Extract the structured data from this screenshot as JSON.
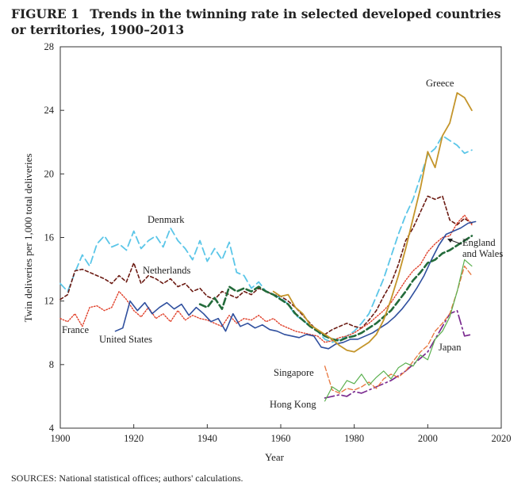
{
  "figure": {
    "label": "FIGURE 1",
    "title": "Trends in the twinning rate in selected developed countries or territories, 1900–2013",
    "sources": "SOURCES: National statistical offices; authors' calculations."
  },
  "chart_data": {
    "type": "line",
    "title": "Trends in the twinning rate in selected developed countries or territories, 1900–2013",
    "xlabel": "Year",
    "ylabel": "Twin deliveries per 1,000 total deliveries",
    "xlim": [
      1900,
      2020
    ],
    "ylim": [
      4,
      28
    ],
    "xticks": [
      1900,
      1920,
      1940,
      1960,
      1980,
      2000,
      2020
    ],
    "yticks": [
      4,
      8,
      12,
      16,
      20,
      24,
      28
    ],
    "grid": false,
    "legend": "inline labels",
    "series": [
      {
        "name": "Denmark",
        "label": "Denmark",
        "color": "#5bc6e8",
        "dash": "9,5",
        "width": 1.8,
        "x": [
          1900,
          1902,
          1904,
          1906,
          1908,
          1910,
          1912,
          1914,
          1916,
          1918,
          1920,
          1922,
          1924,
          1926,
          1928,
          1930,
          1932,
          1934,
          1936,
          1938,
          1940,
          1942,
          1944,
          1946,
          1948,
          1950,
          1952,
          1954,
          1956,
          1958,
          1960,
          1962,
          1964,
          1966,
          1968,
          1970,
          1972,
          1974,
          1976,
          1978,
          1980,
          1982,
          1984,
          1986,
          1988,
          1990,
          1992,
          1994,
          1996,
          1998,
          2000,
          2002,
          2004,
          2006,
          2008,
          2010,
          2012
        ],
        "values": [
          13.1,
          12.6,
          13.8,
          14.9,
          14.2,
          15.6,
          16.1,
          15.4,
          15.6,
          15.2,
          16.4,
          15.3,
          15.8,
          16.1,
          15.4,
          16.6,
          15.8,
          15.3,
          14.6,
          15.8,
          14.5,
          15.3,
          14.6,
          15.7,
          13.8,
          13.6,
          12.8,
          13.2,
          12.6,
          12.4,
          12.2,
          11.8,
          11.1,
          10.8,
          10.4,
          10.1,
          9.6,
          9.4,
          9.6,
          9.8,
          10.1,
          10.6,
          11.2,
          12.3,
          13.4,
          14.8,
          16.2,
          17.4,
          18.4,
          19.8,
          21.2,
          21.6,
          22.4,
          22.1,
          21.8,
          21.3,
          21.5
        ]
      },
      {
        "name": "Netherlands",
        "label": "Netherlands",
        "color": "#6b1a12",
        "dash": "4,3",
        "width": 1.6,
        "x": [
          1900,
          1902,
          1904,
          1906,
          1908,
          1910,
          1912,
          1914,
          1916,
          1918,
          1920,
          1922,
          1924,
          1926,
          1928,
          1930,
          1932,
          1934,
          1936,
          1938,
          1940,
          1942,
          1944,
          1946,
          1948,
          1950,
          1952,
          1954,
          1956,
          1958,
          1960,
          1962,
          1964,
          1966,
          1968,
          1970,
          1972,
          1974,
          1976,
          1978,
          1980,
          1982,
          1984,
          1986,
          1988,
          1990,
          1992,
          1994,
          1996,
          1998,
          2000,
          2002,
          2004,
          2006,
          2008,
          2010,
          2012
        ],
        "values": [
          12.1,
          12.4,
          13.9,
          14.0,
          13.8,
          13.6,
          13.4,
          13.1,
          13.6,
          13.2,
          14.4,
          13.1,
          13.6,
          13.4,
          13.1,
          13.4,
          12.9,
          13.1,
          12.6,
          12.8,
          12.3,
          12.1,
          12.6,
          12.4,
          12.2,
          12.6,
          12.4,
          12.8,
          12.6,
          12.4,
          12.3,
          12.0,
          11.6,
          11.1,
          10.6,
          10.1,
          9.9,
          10.2,
          10.4,
          10.6,
          10.4,
          10.3,
          10.8,
          11.4,
          12.3,
          13.1,
          14.3,
          15.8,
          16.6,
          17.6,
          18.6,
          18.4,
          18.6,
          17.1,
          16.8,
          17.2,
          16.9
        ]
      },
      {
        "name": "France",
        "label": "France",
        "color": "#e0402a",
        "dash": "1.5,2",
        "width": 1.4,
        "x": [
          1900,
          1902,
          1904,
          1906,
          1908,
          1910,
          1912,
          1914,
          1916,
          1918,
          1920,
          1922,
          1924,
          1926,
          1928,
          1930,
          1932,
          1934,
          1936,
          1938,
          1940,
          1942,
          1944,
          1946,
          1948,
          1950,
          1952,
          1954,
          1956,
          1958,
          1960,
          1962,
          1964,
          1966,
          1968,
          1970,
          1972,
          1974,
          1976,
          1978,
          1980,
          1982,
          1984,
          1986,
          1988,
          1990,
          1992,
          1994,
          1996,
          1998,
          2000,
          2002,
          2004,
          2006,
          2008,
          2010,
          2012
        ],
        "values": [
          10.9,
          10.7,
          11.2,
          10.4,
          11.6,
          11.7,
          11.4,
          11.6,
          12.6,
          12.1,
          11.4,
          11.0,
          11.6,
          10.9,
          11.2,
          10.7,
          11.4,
          10.8,
          11.1,
          10.9,
          10.8,
          10.6,
          10.4,
          11.1,
          10.6,
          10.9,
          10.8,
          11.1,
          10.7,
          10.9,
          10.5,
          10.3,
          10.1,
          10.0,
          9.9,
          9.8,
          9.4,
          9.5,
          9.7,
          9.8,
          10.0,
          10.3,
          10.6,
          11.0,
          11.4,
          11.9,
          12.6,
          13.3,
          13.9,
          14.3,
          15.1,
          15.6,
          16.0,
          16.1,
          16.9,
          17.4,
          16.8
        ]
      },
      {
        "name": "United States",
        "label": "United States",
        "color": "#2f4f9e",
        "dash": "",
        "width": 1.6,
        "x": [
          1915,
          1917,
          1919,
          1921,
          1923,
          1925,
          1927,
          1929,
          1931,
          1933,
          1935,
          1937,
          1939,
          1941,
          1943,
          1945,
          1947,
          1949,
          1951,
          1953,
          1955,
          1957,
          1959,
          1961,
          1963,
          1965,
          1967,
          1969,
          1971,
          1973,
          1975,
          1977,
          1979,
          1981,
          1983,
          1985,
          1987,
          1989,
          1991,
          1993,
          1995,
          1997,
          1999,
          2001,
          2003,
          2005,
          2007,
          2009,
          2011,
          2013
        ],
        "values": [
          10.1,
          10.3,
          12.0,
          11.4,
          11.9,
          11.2,
          11.6,
          11.9,
          11.5,
          11.8,
          11.1,
          11.6,
          11.2,
          10.7,
          10.9,
          10.1,
          11.2,
          10.4,
          10.6,
          10.3,
          10.5,
          10.2,
          10.1,
          9.9,
          9.8,
          9.7,
          9.9,
          9.8,
          9.1,
          9.0,
          9.3,
          9.4,
          9.6,
          9.6,
          9.8,
          10.0,
          10.3,
          10.6,
          11.0,
          11.5,
          12.1,
          12.8,
          13.6,
          14.6,
          15.5,
          16.2,
          16.4,
          16.6,
          16.9,
          17.0
        ]
      },
      {
        "name": "England and Wales",
        "label": "England and Wales",
        "color": "#236b3a",
        "dash": "8,4",
        "width": 2.6,
        "x": [
          1938,
          1940,
          1942,
          1944,
          1946,
          1948,
          1950,
          1952,
          1954,
          1956,
          1958,
          1960,
          1962,
          1964,
          1966,
          1968,
          1970,
          1972,
          1974,
          1976,
          1978,
          1980,
          1982,
          1984,
          1986,
          1988,
          1990,
          1992,
          1994,
          1996,
          1998,
          2000,
          2002,
          2004,
          2006,
          2008,
          2010,
          2012
        ],
        "values": [
          11.8,
          11.6,
          12.2,
          11.5,
          12.9,
          12.6,
          12.8,
          12.6,
          12.9,
          12.6,
          12.4,
          12.1,
          11.8,
          11.2,
          10.8,
          10.4,
          10.1,
          9.8,
          9.6,
          9.5,
          9.7,
          9.8,
          10.0,
          10.3,
          10.6,
          11.0,
          11.4,
          12.0,
          12.6,
          13.3,
          13.8,
          14.4,
          14.6,
          15.0,
          15.2,
          15.5,
          15.8,
          16.1
        ]
      },
      {
        "name": "Greece",
        "label": "Greece",
        "color": "#c4952b",
        "dash": "",
        "width": 1.8,
        "x": [
          1958,
          1960,
          1962,
          1964,
          1966,
          1968,
          1970,
          1972,
          1974,
          1976,
          1978,
          1980,
          1982,
          1984,
          1986,
          1988,
          1990,
          1992,
          1994,
          1996,
          1998,
          2000,
          2002,
          2004,
          2006,
          2008,
          2010,
          2012
        ],
        "values": [
          12.6,
          12.3,
          12.4,
          11.6,
          11.2,
          10.5,
          10.2,
          9.9,
          9.6,
          9.2,
          8.9,
          8.8,
          9.1,
          9.4,
          9.9,
          10.8,
          12.1,
          13.6,
          15.3,
          17.2,
          19.1,
          21.4,
          20.4,
          22.4,
          23.2,
          25.1,
          24.8,
          24.0
        ]
      },
      {
        "name": "Japan",
        "label": "Japan",
        "color": "#7a2a8f",
        "dash": "12,4,2,4",
        "width": 1.7,
        "x": [
          1972,
          1974,
          1976,
          1978,
          1980,
          1982,
          1984,
          1986,
          1988,
          1990,
          1992,
          1994,
          1996,
          1998,
          2000,
          2002,
          2004,
          2006,
          2008,
          2010,
          2012
        ],
        "values": [
          5.9,
          6.0,
          6.1,
          6.0,
          6.3,
          6.2,
          6.4,
          6.6,
          6.8,
          7.0,
          7.3,
          7.6,
          8.0,
          8.4,
          8.8,
          9.6,
          10.4,
          11.2,
          11.4,
          9.8,
          9.9
        ]
      },
      {
        "name": "Singapore",
        "label": "Singapore",
        "color": "#e8743b",
        "dash": "6,3",
        "width": 1.3,
        "x": [
          1972,
          1974,
          1976,
          1978,
          1980,
          1982,
          1984,
          1986,
          1988,
          1990,
          1992,
          1994,
          1996,
          1998,
          2000,
          2002,
          2004,
          2006,
          2008,
          2010,
          2012
        ],
        "values": [
          7.9,
          6.4,
          6.2,
          6.5,
          6.4,
          6.6,
          6.9,
          6.5,
          7.1,
          7.4,
          7.2,
          7.6,
          8.2,
          8.8,
          9.2,
          10.1,
          10.6,
          11.2,
          12.6,
          14.2,
          13.6
        ]
      },
      {
        "name": "Hong Kong",
        "label": "Hong Kong",
        "color": "#5ab04e",
        "dash": "",
        "width": 1.2,
        "x": [
          1972,
          1974,
          1976,
          1978,
          1980,
          1982,
          1984,
          1986,
          1988,
          1990,
          1992,
          1994,
          1996,
          1998,
          2000,
          2002,
          2004,
          2006,
          2008,
          2010,
          2012
        ],
        "values": [
          5.7,
          6.6,
          6.3,
          7.0,
          6.8,
          7.4,
          6.7,
          7.2,
          7.6,
          7.1,
          7.8,
          8.1,
          7.9,
          8.6,
          8.3,
          9.6,
          10.1,
          11.0,
          12.6,
          14.6,
          14.2
        ]
      }
    ]
  }
}
